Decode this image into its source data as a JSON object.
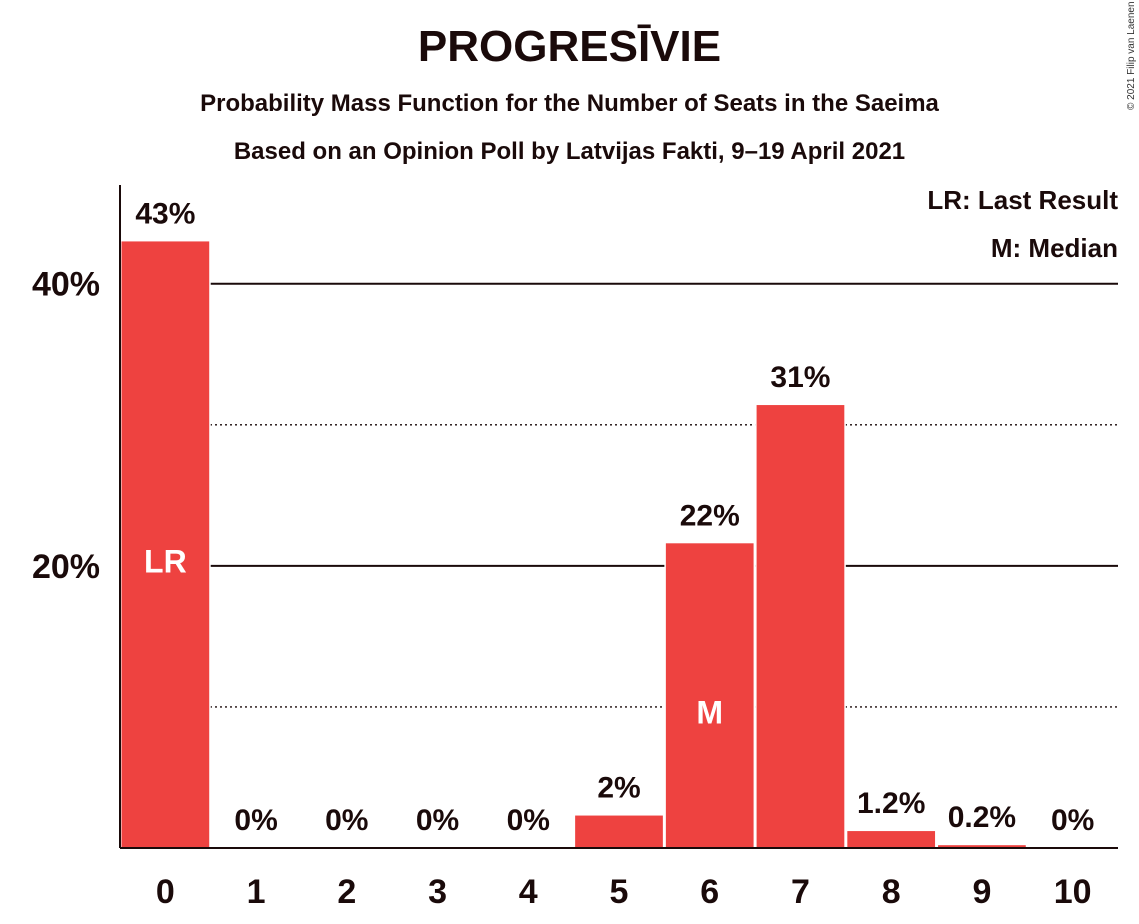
{
  "chart_data": {
    "type": "bar",
    "title": "PROGRESĪVIE",
    "subtitle": "Probability Mass Function for the Number of Seats in the Saeima",
    "subtitle2": "Based on an Opinion Poll by Latvijas Fakti, 9–19 April 2021",
    "copyright": "© 2021 Filip van Laenen",
    "categories": [
      "0",
      "1",
      "2",
      "3",
      "4",
      "5",
      "6",
      "7",
      "8",
      "9",
      "10"
    ],
    "values": [
      43,
      0,
      0,
      0,
      0,
      2.3,
      21.6,
      31.4,
      1.2,
      0.2,
      0
    ],
    "value_labels": [
      "43%",
      "0%",
      "0%",
      "0%",
      "0%",
      "2%",
      "22%",
      "31%",
      "1.2%",
      "0.2%",
      "0%"
    ],
    "bar_markers": {
      "0": "LR",
      "6": "M"
    },
    "ylim": [
      0,
      47
    ],
    "yticks": [
      {
        "value": 20,
        "label": "20%"
      },
      {
        "value": 40,
        "label": "40%"
      }
    ],
    "minor_gridlines": [
      10,
      30
    ],
    "legend": [
      "LR: Last Result",
      "M: Median"
    ],
    "legend_position": "top-right",
    "colors": {
      "bar": "#ee4240",
      "text": "#1a0a0a",
      "grid": "#1a0a0a"
    }
  }
}
